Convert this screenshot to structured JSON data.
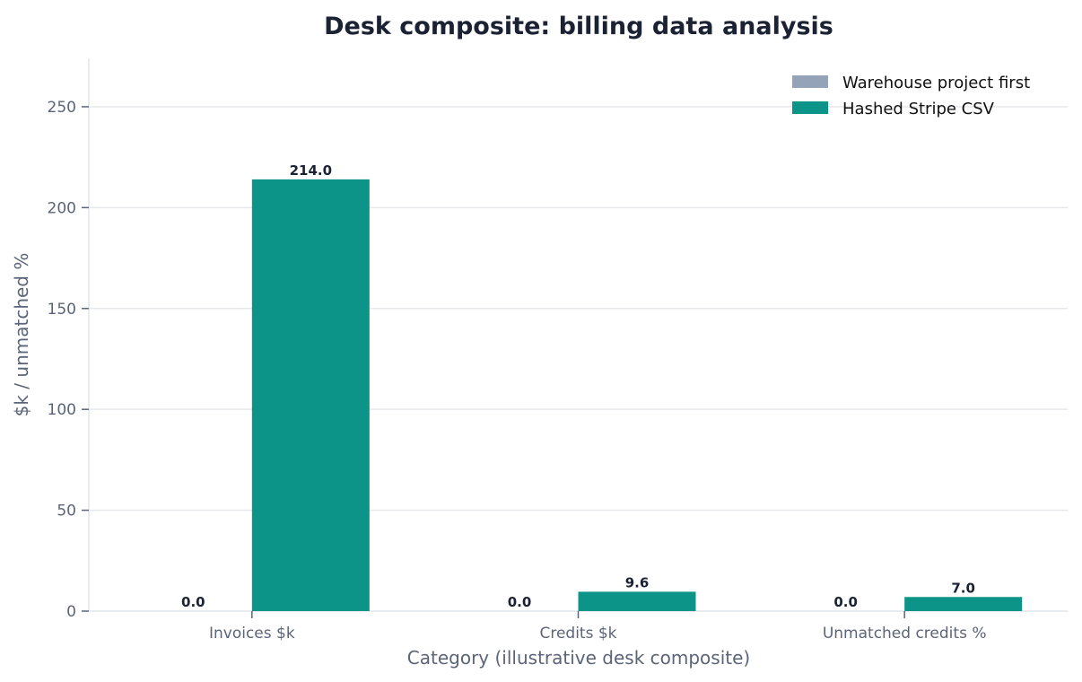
{
  "chart_data": {
    "type": "bar",
    "title": "Desk composite: billing data analysis",
    "xlabel": "Category (illustrative desk composite)",
    "ylabel": "$k / unmatched %",
    "categories": [
      "Invoices $k",
      "Credits $k",
      "Unmatched credits %"
    ],
    "series": [
      {
        "name": "Warehouse project first",
        "values": [
          0.0,
          0.0,
          0.0
        ],
        "labels": [
          "0.0",
          "0.0",
          "0.0"
        ],
        "color": "#94a3b8"
      },
      {
        "name": "Hashed Stripe CSV",
        "values": [
          214.0,
          9.6,
          7.0
        ],
        "labels": [
          "214.0",
          "9.6",
          "7.0"
        ],
        "color": "#0d9488"
      }
    ],
    "ylim": [
      0,
      274
    ],
    "yticks": [
      0,
      50,
      100,
      150,
      200,
      250
    ],
    "grid": "horizontal",
    "legend_position": "top-right"
  }
}
